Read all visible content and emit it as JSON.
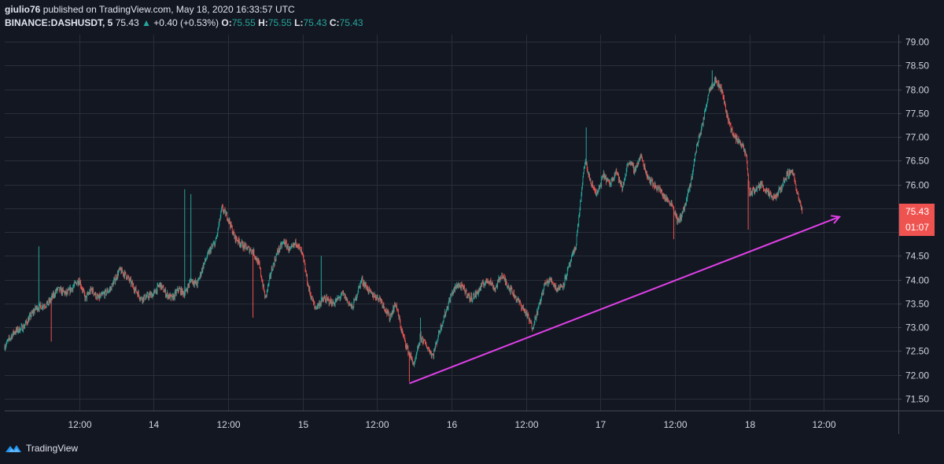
{
  "header": {
    "author": "giulio76",
    "published_text": "published on TradingView.com, May 18, 2020 16:33:57 UTC",
    "symbol": "BINANCE:DASHUSDT, 5",
    "last": "75.43",
    "change_arrow": "▲",
    "change": "+0.40 (+0.53%)",
    "o_label": "O:",
    "o_value": "75.55",
    "h_label": "H:",
    "h_value": "75.55",
    "l_label": "L:",
    "l_value": "75.43",
    "c_label": "C:",
    "c_value": "75.43"
  },
  "footer": {
    "brand": "TradingView"
  },
  "price_label": {
    "price": "75.43",
    "countdown": "01:07"
  },
  "colors": {
    "background": "#131722",
    "up": "#26a69a",
    "down": "#ef5350",
    "trendline": "#e040e8",
    "price_label": "#ef5350"
  },
  "chart_data": {
    "type": "candlestick",
    "symbol": "BINANCE:DASHUSDT",
    "interval": "5",
    "y_ticks": [
      "71.50",
      "72.00",
      "72.50",
      "73.00",
      "73.50",
      "74.00",
      "74.50",
      "75.00",
      "75.50",
      "76.00",
      "76.50",
      "77.00",
      "77.50",
      "78.00",
      "78.50",
      "79.00"
    ],
    "ylim": [
      71.25,
      79.15
    ],
    "x_ticks": [
      "12:00",
      "14",
      "12:00",
      "15",
      "12:00",
      "16",
      "12:00",
      "17",
      "12:00",
      "18",
      "12:00"
    ],
    "x_tick_hours": [
      12,
      24,
      36,
      48,
      60,
      72,
      84,
      96,
      108,
      120,
      132
    ],
    "xlim_hours": [
      0,
      144
    ],
    "last_price": 75.43,
    "close_path": [
      [
        0,
        72.6
      ],
      [
        1.5,
        72.9
      ],
      [
        3,
        73.0
      ],
      [
        5,
        73.4
      ],
      [
        7,
        73.5
      ],
      [
        8.5,
        73.8
      ],
      [
        10,
        73.7
      ],
      [
        12,
        74.0
      ],
      [
        13,
        73.6
      ],
      [
        14,
        73.8
      ],
      [
        15,
        73.6
      ],
      [
        17,
        73.8
      ],
      [
        18.5,
        74.2
      ],
      [
        19.5,
        74.1
      ],
      [
        21,
        73.8
      ],
      [
        22,
        73.6
      ],
      [
        24,
        73.7
      ],
      [
        25,
        73.9
      ],
      [
        26,
        73.7
      ],
      [
        27,
        73.6
      ],
      [
        28,
        73.8
      ],
      [
        29,
        73.7
      ],
      [
        30,
        74.0
      ],
      [
        31,
        73.9
      ],
      [
        32,
        74.3
      ],
      [
        33,
        74.6
      ],
      [
        34,
        74.8
      ],
      [
        35,
        75.5
      ],
      [
        36,
        75.3
      ],
      [
        37,
        74.9
      ],
      [
        38.5,
        74.7
      ],
      [
        40,
        74.6
      ],
      [
        41,
        74.3
      ],
      [
        42,
        73.6
      ],
      [
        43,
        74.2
      ],
      [
        44,
        74.6
      ],
      [
        45,
        74.8
      ],
      [
        46,
        74.6
      ],
      [
        47,
        74.8
      ],
      [
        48,
        74.5
      ],
      [
        49,
        73.8
      ],
      [
        50,
        73.4
      ],
      [
        51.5,
        73.6
      ],
      [
        53,
        73.5
      ],
      [
        54.5,
        73.7
      ],
      [
        56,
        73.4
      ],
      [
        57.5,
        74.0
      ],
      [
        59,
        73.7
      ],
      [
        60.5,
        73.6
      ],
      [
        62,
        73.2
      ],
      [
        63,
        73.5
      ],
      [
        64,
        72.9
      ],
      [
        65,
        72.5
      ],
      [
        66,
        72.2
      ],
      [
        67,
        72.8
      ],
      [
        68,
        72.6
      ],
      [
        69,
        72.4
      ],
      [
        70,
        72.9
      ],
      [
        71,
        73.3
      ],
      [
        72,
        73.7
      ],
      [
        73,
        73.9
      ],
      [
        74,
        73.8
      ],
      [
        75,
        73.6
      ],
      [
        76,
        73.7
      ],
      [
        77,
        73.9
      ],
      [
        78,
        74.0
      ],
      [
        79,
        73.8
      ],
      [
        80,
        74.1
      ],
      [
        81,
        73.9
      ],
      [
        82,
        73.7
      ],
      [
        83,
        73.5
      ],
      [
        84,
        73.3
      ],
      [
        85,
        73.0
      ],
      [
        86,
        73.4
      ],
      [
        87,
        73.9
      ],
      [
        88,
        74.0
      ],
      [
        89,
        73.8
      ],
      [
        90,
        73.9
      ],
      [
        91,
        74.3
      ],
      [
        92,
        74.7
      ],
      [
        92.5,
        75.3
      ],
      [
        93.5,
        76.5
      ],
      [
        94.5,
        76.0
      ],
      [
        95.5,
        75.8
      ],
      [
        96.5,
        76.2
      ],
      [
        97.5,
        76.0
      ],
      [
        98.5,
        76.3
      ],
      [
        99.5,
        75.9
      ],
      [
        100.5,
        76.5
      ],
      [
        101.5,
        76.3
      ],
      [
        102.5,
        76.6
      ],
      [
        103.5,
        76.2
      ],
      [
        104.5,
        76.0
      ],
      [
        105.5,
        75.9
      ],
      [
        106.5,
        75.7
      ],
      [
        107.5,
        75.6
      ],
      [
        108.5,
        75.2
      ],
      [
        109.5,
        75.5
      ],
      [
        110.5,
        76.0
      ],
      [
        111.5,
        76.8
      ],
      [
        112.5,
        77.3
      ],
      [
        113.5,
        78.0
      ],
      [
        114.5,
        78.2
      ],
      [
        115.5,
        78.0
      ],
      [
        116.5,
        77.4
      ],
      [
        117.5,
        77.0
      ],
      [
        118.5,
        76.9
      ],
      [
        119.5,
        76.6
      ],
      [
        120,
        75.8
      ],
      [
        121,
        75.9
      ],
      [
        122,
        76.0
      ],
      [
        123,
        75.8
      ],
      [
        124,
        75.7
      ],
      [
        125,
        75.9
      ],
      [
        126,
        76.2
      ],
      [
        127,
        76.3
      ],
      [
        127.5,
        75.9
      ],
      [
        128.5,
        75.43
      ]
    ],
    "spikes": [
      {
        "x": 5.5,
        "price": 74.7
      },
      {
        "x": 7.5,
        "price": 72.7
      },
      {
        "x": 29,
        "price": 75.9
      },
      {
        "x": 30,
        "price": 75.8
      },
      {
        "x": 40,
        "price": 73.2
      },
      {
        "x": 51,
        "price": 74.5
      },
      {
        "x": 65.2,
        "price": 71.85
      },
      {
        "x": 67,
        "price": 73.2
      },
      {
        "x": 93.7,
        "price": 77.2
      },
      {
        "x": 107.8,
        "price": 74.85
      },
      {
        "x": 114,
        "price": 78.4
      },
      {
        "x": 119.8,
        "price": 75.05
      }
    ],
    "trendline": {
      "from": [
        65.2,
        71.82
      ],
      "to": [
        134.5,
        75.32
      ]
    }
  }
}
